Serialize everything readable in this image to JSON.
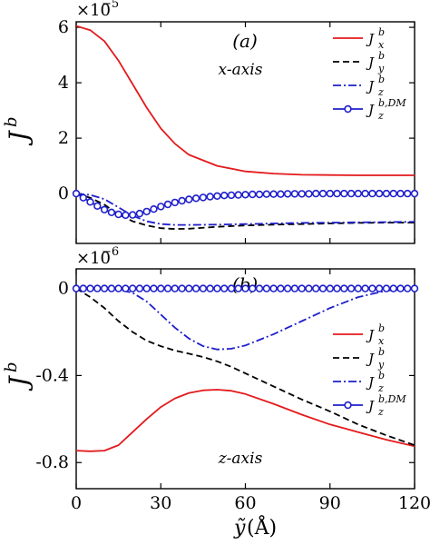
{
  "chart_data": [
    {
      "panel": "(a)",
      "type": "line",
      "multiplier": "×10",
      "multiplier_exp": "−5",
      "ylabel": "J",
      "ylabel_sup": "b",
      "annotation": "x-axis",
      "xlim": [
        0,
        120
      ],
      "ylim": [
        -1.8,
        6.2
      ],
      "yticks": [
        6,
        4,
        2,
        0
      ],
      "ytick_labels": [
        "6",
        "4",
        "2",
        "0"
      ],
      "xticks": [
        0,
        30,
        60,
        90,
        120
      ],
      "legend_position": "top-right",
      "grid": false,
      "series": [
        {
          "name": "J_x^b",
          "label_main": "J",
          "label_sup": "b",
          "label_sub": "x",
          "color": "#e31a1c",
          "style": "solid",
          "x": [
            0,
            5,
            10,
            15,
            20,
            25,
            30,
            35,
            40,
            50,
            60,
            70,
            80,
            90,
            100,
            110,
            120
          ],
          "y": [
            6.05,
            5.9,
            5.5,
            4.8,
            3.95,
            3.1,
            2.35,
            1.8,
            1.4,
            1.0,
            0.8,
            0.72,
            0.68,
            0.67,
            0.66,
            0.66,
            0.66
          ]
        },
        {
          "name": "J_y^b",
          "label_main": "J",
          "label_sup": "b",
          "label_sub": "y",
          "color": "#000000",
          "style": "dashed",
          "x": [
            0,
            5,
            10,
            15,
            20,
            25,
            30,
            35,
            40,
            50,
            60,
            70,
            80,
            90,
            100,
            110,
            120
          ],
          "y": [
            0,
            -0.15,
            -0.4,
            -0.75,
            -1.0,
            -1.15,
            -1.25,
            -1.28,
            -1.27,
            -1.2,
            -1.15,
            -1.12,
            -1.1,
            -1.08,
            -1.06,
            -1.05,
            -1.05
          ]
        },
        {
          "name": "J_z^b",
          "label_main": "J",
          "label_sup": "b",
          "label_sub": "z",
          "color": "#1f1fcc",
          "style": "dashdot",
          "x": [
            0,
            5,
            10,
            15,
            20,
            25,
            30,
            35,
            40,
            50,
            60,
            70,
            80,
            90,
            100,
            110,
            120
          ],
          "y": [
            0,
            -0.05,
            -0.2,
            -0.5,
            -0.8,
            -1.0,
            -1.1,
            -1.13,
            -1.13,
            -1.12,
            -1.1,
            -1.08,
            -1.06,
            -1.05,
            -1.04,
            -1.03,
            -1.02
          ]
        },
        {
          "name": "J_z^{b,DM}",
          "label_main": "J",
          "label_sup": "b,DM",
          "label_sub": "z",
          "color": "#1f1fcc",
          "style": "solid-marker",
          "x": [
            0,
            2.5,
            5,
            7.5,
            10,
            12.5,
            15,
            17.5,
            20,
            22.5,
            25,
            27.5,
            30,
            32.5,
            35,
            37.5,
            40,
            42.5,
            45,
            47.5,
            50,
            52.5,
            55,
            57.5,
            60,
            62.5,
            65,
            67.5,
            70,
            72.5,
            75,
            77.5,
            80,
            82.5,
            85,
            87.5,
            90,
            92.5,
            95,
            97.5,
            100,
            102.5,
            105,
            107.5,
            110,
            112.5,
            115,
            117.5,
            120
          ],
          "y": [
            0,
            -0.15,
            -0.3,
            -0.45,
            -0.58,
            -0.68,
            -0.75,
            -0.78,
            -0.77,
            -0.72,
            -0.65,
            -0.56,
            -0.47,
            -0.39,
            -0.32,
            -0.26,
            -0.21,
            -0.17,
            -0.14,
            -0.11,
            -0.09,
            -0.07,
            -0.06,
            -0.05,
            -0.04,
            -0.03,
            -0.03,
            -0.02,
            -0.02,
            -0.02,
            -0.01,
            -0.01,
            -0.01,
            -0.01,
            0,
            0,
            0,
            0,
            0,
            0,
            0,
            0,
            0,
            0,
            0,
            0,
            0,
            0,
            0
          ]
        }
      ]
    },
    {
      "panel": "(b)",
      "type": "line",
      "multiplier": "×10",
      "multiplier_exp": "−6",
      "ylabel": "J",
      "ylabel_sup": "b",
      "annotation": "z-axis",
      "xlim": [
        0,
        120
      ],
      "ylim": [
        -0.92,
        0.09
      ],
      "yticks": [
        0,
        -0.4,
        -0.8
      ],
      "ytick_labels": [
        "0",
        "-0.4",
        "-0.8"
      ],
      "xticks": [
        0,
        30,
        60,
        90,
        120
      ],
      "xtick_labels": [
        "0",
        "30",
        "60",
        "90",
        "120"
      ],
      "xlabel": "(Å)",
      "xlabel_var": "ỹ",
      "legend_position": "right",
      "grid": false,
      "series": [
        {
          "name": "J_x^b",
          "label_main": "J",
          "label_sup": "b",
          "label_sub": "x",
          "color": "#e31a1c",
          "style": "solid",
          "x": [
            0,
            5,
            10,
            15,
            20,
            25,
            30,
            35,
            40,
            45,
            50,
            55,
            60,
            70,
            80,
            90,
            100,
            110,
            120
          ],
          "y": [
            -0.745,
            -0.748,
            -0.745,
            -0.72,
            -0.66,
            -0.6,
            -0.545,
            -0.505,
            -0.48,
            -0.468,
            -0.465,
            -0.47,
            -0.485,
            -0.53,
            -0.58,
            -0.625,
            -0.66,
            -0.695,
            -0.725
          ]
        },
        {
          "name": "J_y^b",
          "label_main": "J",
          "label_sup": "b",
          "label_sub": "y",
          "color": "#000000",
          "style": "dashed",
          "x": [
            0,
            5,
            10,
            15,
            20,
            25,
            30,
            35,
            40,
            45,
            50,
            55,
            60,
            70,
            80,
            90,
            100,
            110,
            120
          ],
          "y": [
            0,
            -0.04,
            -0.09,
            -0.15,
            -0.2,
            -0.24,
            -0.265,
            -0.285,
            -0.3,
            -0.315,
            -0.335,
            -0.36,
            -0.39,
            -0.45,
            -0.51,
            -0.565,
            -0.625,
            -0.675,
            -0.72
          ]
        },
        {
          "name": "J_z^b",
          "label_main": "J",
          "label_sup": "b",
          "label_sub": "z",
          "color": "#1f1fcc",
          "style": "dashdot",
          "x": [
            0,
            5,
            10,
            15,
            20,
            25,
            30,
            35,
            40,
            45,
            50,
            55,
            60,
            70,
            80,
            90,
            100,
            110,
            120
          ],
          "y": [
            0,
            0,
            0,
            -0.005,
            -0.02,
            -0.06,
            -0.12,
            -0.18,
            -0.23,
            -0.265,
            -0.28,
            -0.277,
            -0.262,
            -0.21,
            -0.15,
            -0.09,
            -0.04,
            -0.01,
            0
          ]
        },
        {
          "name": "J_z^{b,DM}",
          "label_main": "J",
          "label_sup": "b,DM",
          "label_sub": "z",
          "color": "#1f1fcc",
          "style": "solid-marker",
          "x": [
            0,
            2.5,
            5,
            7.5,
            10,
            12.5,
            15,
            17.5,
            20,
            22.5,
            25,
            27.5,
            30,
            32.5,
            35,
            37.5,
            40,
            42.5,
            45,
            47.5,
            50,
            52.5,
            55,
            57.5,
            60,
            62.5,
            65,
            67.5,
            70,
            72.5,
            75,
            77.5,
            80,
            82.5,
            85,
            87.5,
            90,
            92.5,
            95,
            97.5,
            100,
            102.5,
            105,
            107.5,
            110,
            112.5,
            115,
            117.5,
            120
          ],
          "y": [
            0,
            0,
            0,
            0,
            0,
            0,
            0,
            0,
            0,
            0,
            0,
            0,
            0,
            0,
            0,
            0,
            0,
            0,
            0,
            0,
            0,
            0,
            0,
            0,
            0,
            0,
            0,
            0,
            0,
            0,
            0,
            0,
            0,
            0,
            0,
            0,
            0,
            0,
            0,
            0,
            0,
            0,
            0,
            0,
            0,
            0,
            0,
            0,
            0
          ]
        }
      ]
    }
  ]
}
